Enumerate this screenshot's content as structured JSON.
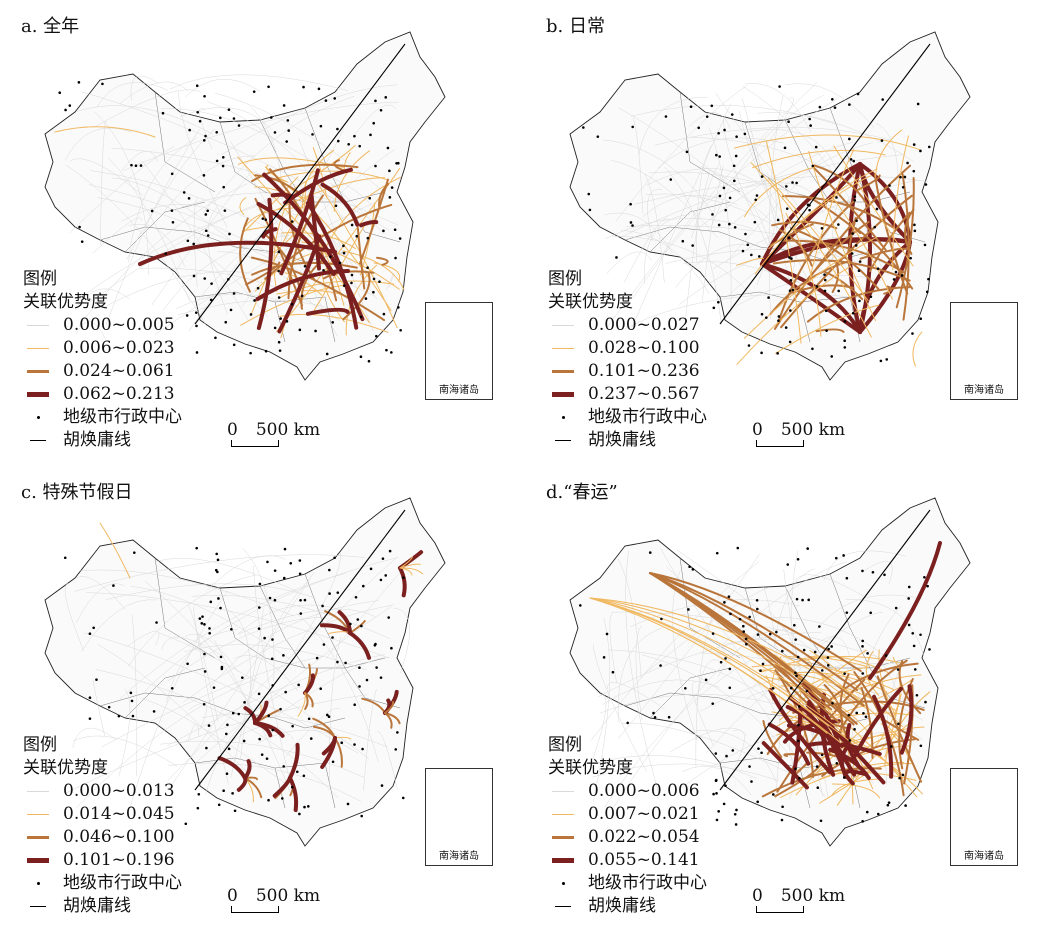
{
  "panels": [
    {
      "title": "a. 全年",
      "legend": {
        "heading": "图例",
        "subheading": "关联优势度",
        "classes": [
          {
            "range": "0.000~0.005",
            "color": "#d9d9d9"
          },
          {
            "range": "0.006~0.023",
            "color": "#f0b860"
          },
          {
            "range": "0.024~0.061",
            "color": "#b9753a"
          },
          {
            "range": "0.062~0.213",
            "color": "#7b1f1f"
          }
        ],
        "city_label": "地级市行政中心",
        "line_label": "胡焕庸线"
      },
      "scale": {
        "zero": "0",
        "distance": "500 km"
      },
      "inset_label": "南海诸岛",
      "pattern": "dense-east"
    },
    {
      "title": "b. 日常",
      "legend": {
        "heading": "图例",
        "subheading": "关联优势度",
        "classes": [
          {
            "range": "0.000~0.027",
            "color": "#d9d9d9"
          },
          {
            "range": "0.028~0.100",
            "color": "#f0b860"
          },
          {
            "range": "0.101~0.236",
            "color": "#b9753a"
          },
          {
            "range": "0.237~0.567",
            "color": "#7b1f1f"
          }
        ],
        "city_label": "地级市行政中心",
        "line_label": "胡焕庸线"
      },
      "scale": {
        "zero": "0",
        "distance": "500 km"
      },
      "inset_label": "南海诸岛",
      "pattern": "diamond"
    },
    {
      "title": "c. 特殊节假日",
      "legend": {
        "heading": "图例",
        "subheading": "关联优势度",
        "classes": [
          {
            "range": "0.000~0.013",
            "color": "#d9d9d9"
          },
          {
            "range": "0.014~0.045",
            "color": "#f0b860"
          },
          {
            "range": "0.046~0.100",
            "color": "#b9753a"
          },
          {
            "range": "0.101~0.196",
            "color": "#7b1f1f"
          }
        ],
        "city_label": "地级市行政中心",
        "line_label": "胡焕庸线"
      },
      "scale": {
        "zero": "0",
        "distance": "500 km"
      },
      "inset_label": "南海诸岛",
      "pattern": "local"
    },
    {
      "title": "d.“春运”",
      "legend": {
        "heading": "图例",
        "subheading": "关联优势度",
        "classes": [
          {
            "range": "0.000~0.006",
            "color": "#d9d9d9"
          },
          {
            "range": "0.007~0.021",
            "color": "#f0b860"
          },
          {
            "range": "0.022~0.054",
            "color": "#b9753a"
          },
          {
            "range": "0.055~0.141",
            "color": "#7b1f1f"
          }
        ],
        "city_label": "地级市行政中心",
        "line_label": "胡焕庸线"
      },
      "scale": {
        "zero": "0",
        "distance": "500 km"
      },
      "inset_label": "南海诸岛",
      "pattern": "spring"
    }
  ]
}
